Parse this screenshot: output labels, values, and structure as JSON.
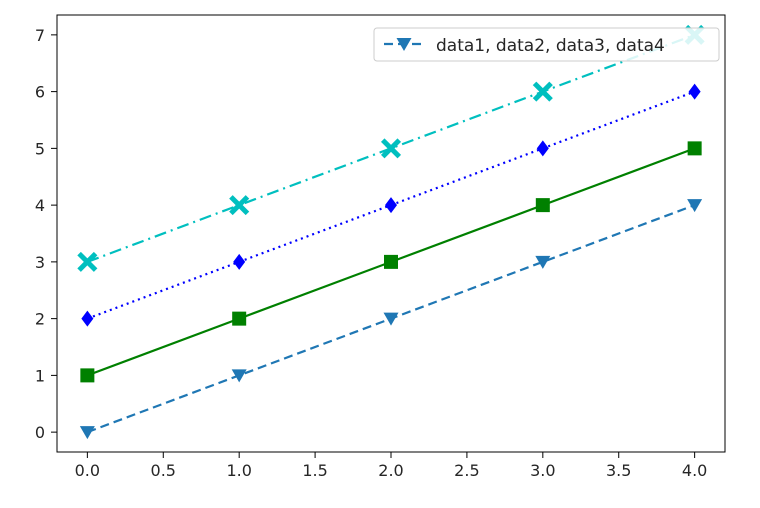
{
  "chart_data": {
    "type": "line",
    "title": "",
    "xlabel": "",
    "ylabel": "",
    "xlim": [
      -0.2,
      4.2
    ],
    "ylim": [
      -0.35,
      7.35
    ],
    "x_ticks": [
      "0.0",
      "0.5",
      "1.0",
      "1.5",
      "2.0",
      "2.5",
      "3.0",
      "3.5",
      "4.0"
    ],
    "y_ticks": [
      "0",
      "1",
      "2",
      "3",
      "4",
      "5",
      "6",
      "7"
    ],
    "x": [
      0,
      1,
      2,
      3,
      4
    ],
    "series": [
      {
        "values": [
          0,
          1,
          2,
          3,
          4
        ],
        "color": "#1f77b4",
        "linestyle": "dashed",
        "marker": "triangle-down"
      },
      {
        "values": [
          1,
          2,
          3,
          4,
          5
        ],
        "color": "#008000",
        "linestyle": "solid",
        "marker": "square"
      },
      {
        "values": [
          2,
          3,
          4,
          5,
          6
        ],
        "color": "#0000ff",
        "linestyle": "dotted",
        "marker": "diamond"
      },
      {
        "values": [
          3,
          4,
          5,
          6,
          7
        ],
        "color": "#00bfbf",
        "linestyle": "dashdot",
        "marker": "x"
      }
    ],
    "legend": {
      "placement": "upper-right",
      "entries": [
        {
          "label": "data1, data2, data3, data4",
          "color": "#1f77b4",
          "linestyle": "dashed",
          "marker": "triangle-down"
        }
      ]
    },
    "grid": false
  }
}
